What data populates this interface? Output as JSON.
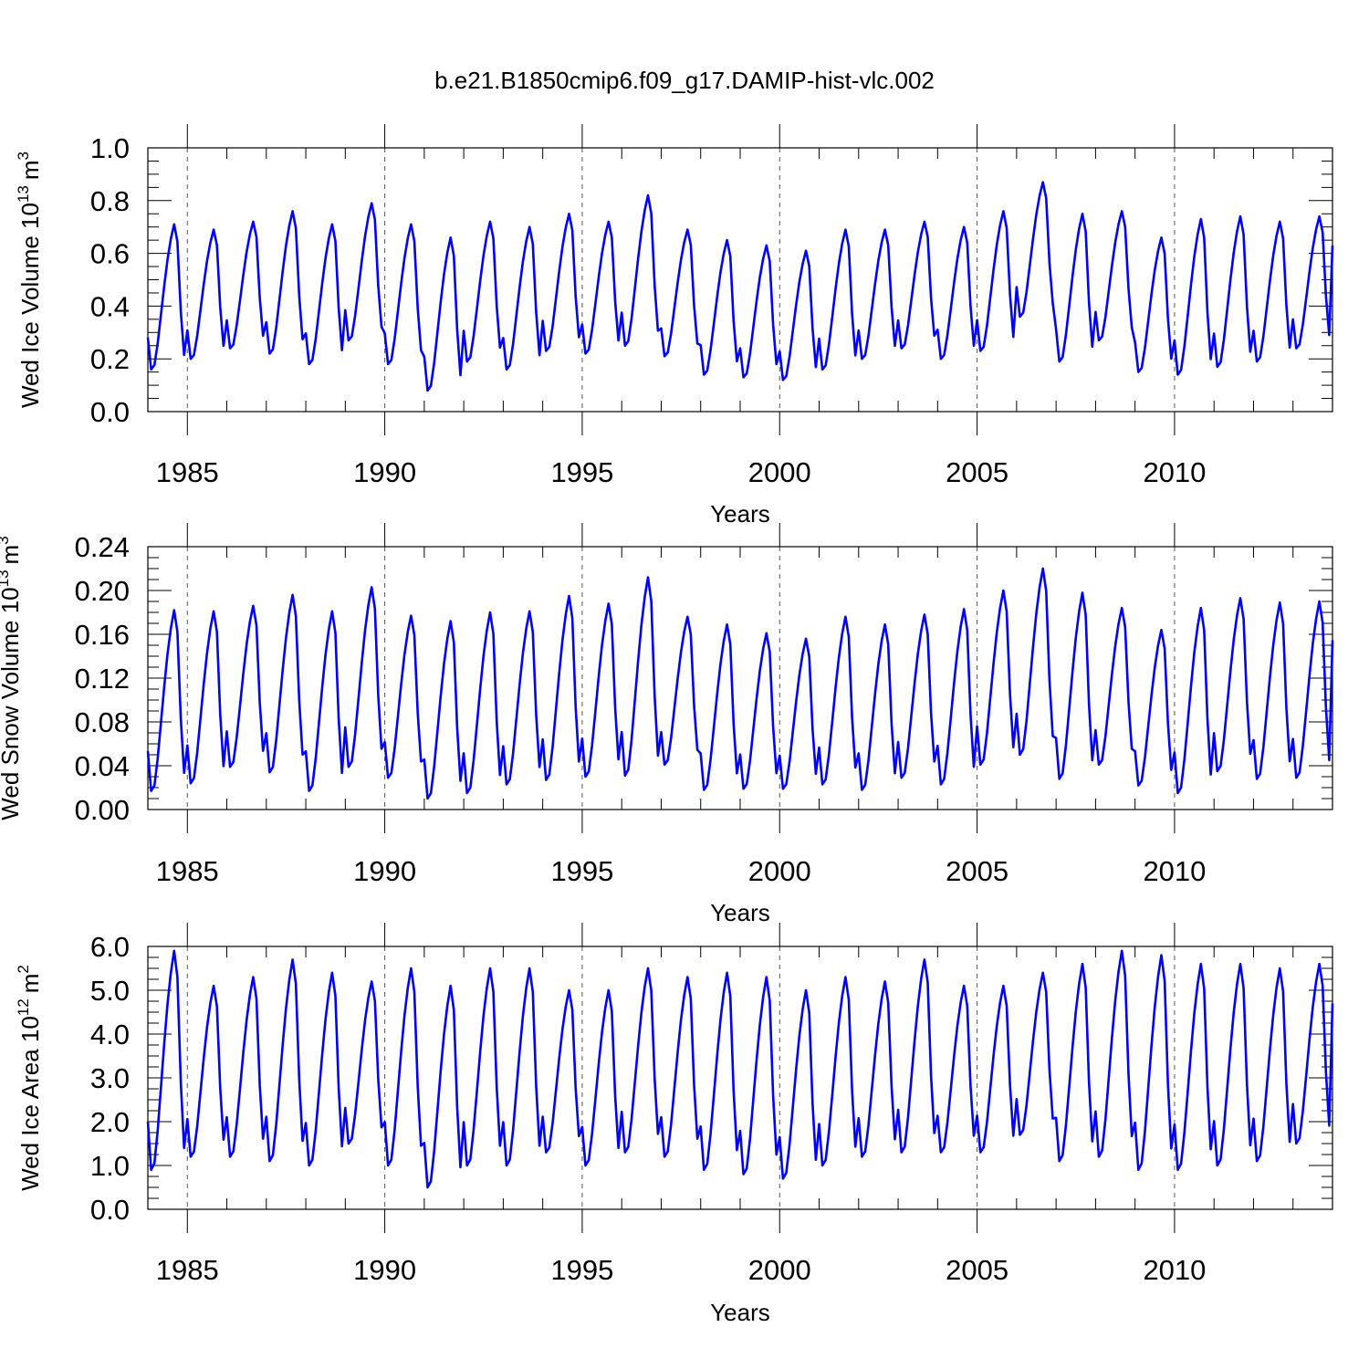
{
  "title": "b.e21.B1850cmip6.f09_g17.DAMIP-hist-vlc.002",
  "chart_data": [
    {
      "type": "line",
      "ylabel_main": "Wed Ice Volume 10",
      "ylabel_exp": "13",
      "ylabel_unit": "m",
      "ylabel_unit_exp": "3",
      "xlabel": "Years",
      "xlim": [
        1984.0,
        2014.0
      ],
      "ylim": [
        0.0,
        1.0
      ],
      "yticks": [
        "0.0",
        "0.2",
        "0.4",
        "0.6",
        "0.8",
        "1.0"
      ],
      "ytick_values": [
        0.0,
        0.2,
        0.4,
        0.6,
        0.8,
        1.0
      ],
      "yminor": 0.05,
      "xticks": [
        "1985",
        "1990",
        "1995",
        "2000",
        "2005",
        "2010"
      ],
      "xtick_values": [
        1985,
        1990,
        1995,
        2000,
        2005,
        2010
      ],
      "series": [
        {
          "name": "Wed Ice Volume",
          "color": "#0000ff",
          "start_year": 1984.0,
          "step": 0.0833333,
          "annual_min": [
            0.16,
            0.2,
            0.24,
            0.22,
            0.18,
            0.27,
            0.18,
            0.08,
            0.19,
            0.16,
            0.23,
            0.22,
            0.25,
            0.21,
            0.14,
            0.13,
            0.12,
            0.16,
            0.2,
            0.24,
            0.2,
            0.23,
            0.36,
            0.19,
            0.27,
            0.15,
            0.14,
            0.17,
            0.19,
            0.24
          ],
          "annual_max": [
            0.71,
            0.69,
            0.72,
            0.76,
            0.71,
            0.79,
            0.71,
            0.66,
            0.72,
            0.7,
            0.75,
            0.72,
            0.82,
            0.69,
            0.65,
            0.63,
            0.61,
            0.69,
            0.69,
            0.72,
            0.7,
            0.76,
            0.87,
            0.75,
            0.76,
            0.66,
            0.73,
            0.74,
            0.72,
            0.74
          ]
        }
      ]
    },
    {
      "type": "line",
      "ylabel_main": "Wed Snow Volume 10",
      "ylabel_exp": "13",
      "ylabel_unit": "m",
      "ylabel_unit_exp": "3",
      "xlabel": "Years",
      "xlim": [
        1984.0,
        2014.0
      ],
      "ylim": [
        0.0,
        0.24
      ],
      "yticks": [
        "0.00",
        "0.04",
        "0.08",
        "0.12",
        "0.16",
        "0.20",
        "0.24"
      ],
      "ytick_values": [
        0.0,
        0.04,
        0.08,
        0.12,
        0.16,
        0.2,
        0.24
      ],
      "yminor": 0.01,
      "xticks": [
        "1985",
        "1990",
        "1995",
        "2000",
        "2005",
        "2010"
      ],
      "xtick_values": [
        1985,
        1990,
        1995,
        2000,
        2005,
        2010
      ],
      "series": [
        {
          "name": "Wed Snow Volume",
          "color": "#0000ff",
          "start_year": 1984.0,
          "step": 0.0833333,
          "annual_min": [
            0.017,
            0.024,
            0.039,
            0.034,
            0.017,
            0.039,
            0.029,
            0.01,
            0.015,
            0.023,
            0.027,
            0.03,
            0.031,
            0.041,
            0.018,
            0.019,
            0.019,
            0.023,
            0.018,
            0.029,
            0.023,
            0.041,
            0.05,
            0.028,
            0.041,
            0.022,
            0.015,
            0.035,
            0.028,
            0.029
          ],
          "annual_max": [
            0.182,
            0.181,
            0.186,
            0.196,
            0.181,
            0.203,
            0.177,
            0.172,
            0.18,
            0.181,
            0.195,
            0.188,
            0.212,
            0.176,
            0.169,
            0.161,
            0.156,
            0.176,
            0.169,
            0.178,
            0.183,
            0.2,
            0.22,
            0.198,
            0.184,
            0.164,
            0.184,
            0.193,
            0.189,
            0.19
          ]
        }
      ]
    },
    {
      "type": "line",
      "ylabel_main": "Wed Ice Area 10",
      "ylabel_exp": "12",
      "ylabel_unit": "m",
      "ylabel_unit_exp": "2",
      "xlabel": "Years",
      "xlim": [
        1984.0,
        2014.0
      ],
      "ylim": [
        0.0,
        6.0
      ],
      "yticks": [
        "0.0",
        "1.0",
        "2.0",
        "3.0",
        "4.0",
        "5.0",
        "6.0"
      ],
      "ytick_values": [
        0.0,
        1.0,
        2.0,
        3.0,
        4.0,
        5.0,
        6.0
      ],
      "yminor": 0.25,
      "xticks": [
        "1985",
        "1990",
        "1995",
        "2000",
        "2005",
        "2010"
      ],
      "xtick_values": [
        1985,
        1990,
        1995,
        2000,
        2005,
        2010
      ],
      "series": [
        {
          "name": "Wed Ice Area",
          "color": "#0000ff",
          "start_year": 1984.0,
          "step": 0.0833333,
          "annual_min": [
            0.9,
            1.2,
            1.2,
            1.1,
            1.0,
            1.5,
            1.0,
            0.5,
            1.0,
            1.0,
            1.3,
            1.0,
            1.3,
            1.2,
            0.9,
            0.8,
            0.7,
            1.0,
            1.2,
            1.3,
            1.3,
            1.3,
            1.7,
            1.1,
            1.2,
            0.9,
            0.9,
            1.0,
            1.1,
            1.5
          ],
          "annual_max": [
            5.9,
            5.1,
            5.3,
            5.7,
            5.4,
            5.2,
            5.5,
            5.1,
            5.5,
            5.5,
            5.0,
            5.0,
            5.5,
            5.3,
            5.4,
            5.3,
            5.0,
            5.3,
            5.2,
            5.7,
            5.1,
            5.1,
            5.4,
            5.6,
            5.9,
            5.8,
            5.6,
            5.6,
            5.5,
            5.6
          ]
        }
      ]
    }
  ]
}
